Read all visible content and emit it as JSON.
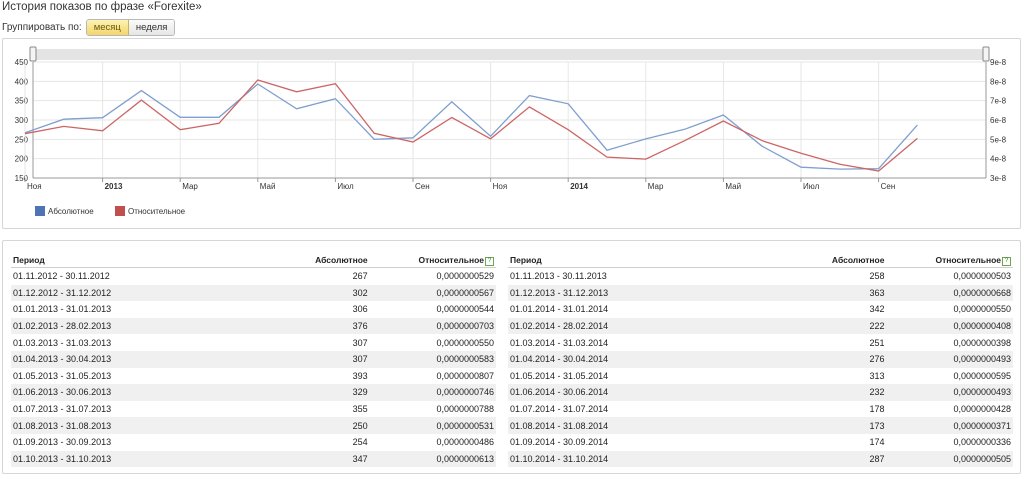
{
  "page": {
    "title": "История показов по фразе «Forexite»",
    "group_label": "Группировать по:",
    "group_options": [
      "месяц",
      "неделя"
    ],
    "group_selected": "месяц"
  },
  "chart_data": {
    "type": "line",
    "x": [
      "2012-11",
      "2012-12",
      "2013-01",
      "2013-02",
      "2013-03",
      "2013-04",
      "2013-05",
      "2013-06",
      "2013-07",
      "2013-08",
      "2013-09",
      "2013-10",
      "2013-11",
      "2013-12",
      "2014-01",
      "2014-02",
      "2014-03",
      "2014-04",
      "2014-05",
      "2014-06",
      "2014-07",
      "2014-08",
      "2014-09",
      "2014-10"
    ],
    "x_tick_labels": [
      {
        "at": "2012-11",
        "label": "Ноя",
        "bold": false
      },
      {
        "at": "2013-01",
        "label": "2013",
        "bold": true
      },
      {
        "at": "2013-03",
        "label": "Мар",
        "bold": false
      },
      {
        "at": "2013-05",
        "label": "Май",
        "bold": false
      },
      {
        "at": "2013-07",
        "label": "Июл",
        "bold": false
      },
      {
        "at": "2013-09",
        "label": "Сен",
        "bold": false
      },
      {
        "at": "2013-11",
        "label": "Ноя",
        "bold": false
      },
      {
        "at": "2014-01",
        "label": "2014",
        "bold": true
      },
      {
        "at": "2014-03",
        "label": "Мар",
        "bold": false
      },
      {
        "at": "2014-05",
        "label": "Май",
        "bold": false
      },
      {
        "at": "2014-07",
        "label": "Июл",
        "bold": false
      },
      {
        "at": "2014-09",
        "label": "Сен",
        "bold": false
      }
    ],
    "y_left": {
      "min": 150,
      "max": 450,
      "ticks": [
        "150",
        "200",
        "250",
        "300",
        "350",
        "400",
        "450"
      ]
    },
    "y_right": {
      "min": 3e-08,
      "max": 9e-08,
      "ticks": [
        "3e-8",
        "4e-8",
        "5e-8",
        "6e-8",
        "7e-8",
        "8e-8",
        "9e-8"
      ]
    },
    "series": [
      {
        "name": "Абсолютное",
        "axis": "left",
        "color": "#7f9fcf",
        "values": [
          267,
          302,
          306,
          376,
          307,
          307,
          393,
          329,
          355,
          250,
          254,
          347,
          258,
          363,
          342,
          222,
          251,
          276,
          313,
          232,
          178,
          173,
          174,
          287
        ]
      },
      {
        "name": "Относительное",
        "axis": "right",
        "color": "#cc6666",
        "values": [
          5.29e-08,
          5.67e-08,
          5.44e-08,
          7.03e-08,
          5.5e-08,
          5.83e-08,
          8.07e-08,
          7.46e-08,
          7.88e-08,
          5.31e-08,
          4.86e-08,
          6.13e-08,
          5.03e-08,
          6.68e-08,
          5.5e-08,
          4.08e-08,
          3.98e-08,
          4.93e-08,
          5.95e-08,
          4.93e-08,
          4.28e-08,
          3.71e-08,
          3.36e-08,
          5.05e-08
        ]
      }
    ],
    "legend": {
      "placement": "bottom-left",
      "items": [
        {
          "label": "Абсолютное",
          "color": "#4f74b3"
        },
        {
          "label": "Относительное",
          "color": "#c0504d"
        }
      ]
    },
    "grid": true
  },
  "table": {
    "headers": {
      "period": "Период",
      "absolute": "Абсолютное",
      "relative": "Относительное"
    },
    "left": [
      [
        "01.11.2012 - 30.11.2012",
        "267",
        "0,0000000529"
      ],
      [
        "01.12.2012 - 31.12.2012",
        "302",
        "0,0000000567"
      ],
      [
        "01.01.2013 - 31.01.2013",
        "306",
        "0,0000000544"
      ],
      [
        "01.02.2013 - 28.02.2013",
        "376",
        "0,0000000703"
      ],
      [
        "01.03.2013 - 31.03.2013",
        "307",
        "0,0000000550"
      ],
      [
        "01.04.2013 - 30.04.2013",
        "307",
        "0,0000000583"
      ],
      [
        "01.05.2013 - 31.05.2013",
        "393",
        "0,0000000807"
      ],
      [
        "01.06.2013 - 30.06.2013",
        "329",
        "0,0000000746"
      ],
      [
        "01.07.2013 - 31.07.2013",
        "355",
        "0,0000000788"
      ],
      [
        "01.08.2013 - 31.08.2013",
        "250",
        "0,0000000531"
      ],
      [
        "01.09.2013 - 30.09.2013",
        "254",
        "0,0000000486"
      ],
      [
        "01.10.2013 - 31.10.2013",
        "347",
        "0,0000000613"
      ]
    ],
    "right": [
      [
        "01.11.2013 - 30.11.2013",
        "258",
        "0,0000000503"
      ],
      [
        "01.12.2013 - 31.12.2013",
        "363",
        "0,0000000668"
      ],
      [
        "01.01.2014 - 31.01.2014",
        "342",
        "0,0000000550"
      ],
      [
        "01.02.2014 - 28.02.2014",
        "222",
        "0,0000000408"
      ],
      [
        "01.03.2014 - 31.03.2014",
        "251",
        "0,0000000398"
      ],
      [
        "01.04.2014 - 30.04.2014",
        "276",
        "0,0000000493"
      ],
      [
        "01.05.2014 - 31.05.2014",
        "313",
        "0,0000000595"
      ],
      [
        "01.06.2014 - 30.06.2014",
        "232",
        "0,0000000493"
      ],
      [
        "01.07.2014 - 31.07.2014",
        "178",
        "0,0000000428"
      ],
      [
        "01.08.2014 - 31.08.2014",
        "173",
        "0,0000000371"
      ],
      [
        "01.09.2014 - 30.09.2014",
        "174",
        "0,0000000336"
      ],
      [
        "01.10.2014 - 31.10.2014",
        "287",
        "0,0000000505"
      ]
    ]
  }
}
